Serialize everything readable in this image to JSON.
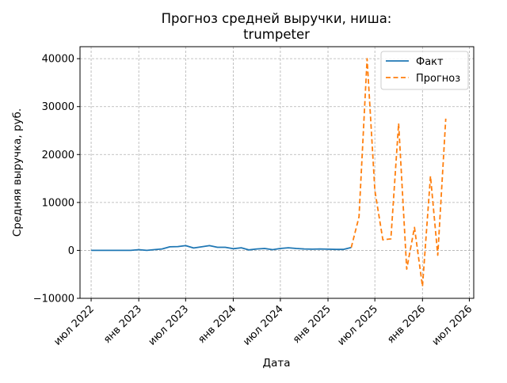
{
  "chart_data": {
    "type": "line",
    "title_lines": [
      "Прогноз средней выручки, ниша:",
      "trumpeter"
    ],
    "xlabel": "Дата",
    "ylabel": "Средняя выручка, руб.",
    "x_ticks": [
      {
        "date": "2022-07-01",
        "label": "июл 2022"
      },
      {
        "date": "2023-01-01",
        "label": "янв 2023"
      },
      {
        "date": "2023-07-01",
        "label": "июл 2023"
      },
      {
        "date": "2024-01-01",
        "label": "янв 2024"
      },
      {
        "date": "2024-07-01",
        "label": "июл 2024"
      },
      {
        "date": "2025-01-01",
        "label": "янв 2025"
      },
      {
        "date": "2025-07-01",
        "label": "июл 2025"
      },
      {
        "date": "2026-01-01",
        "label": "янв 2026"
      },
      {
        "date": "2026-07-01",
        "label": "июл 2026"
      }
    ],
    "y_ticks": [
      {
        "value": -10000,
        "label": "−10000"
      },
      {
        "value": 0,
        "label": "0"
      },
      {
        "value": 10000,
        "label": "10000"
      },
      {
        "value": 20000,
        "label": "20000"
      },
      {
        "value": 30000,
        "label": "30000"
      },
      {
        "value": 40000,
        "label": "40000"
      }
    ],
    "xlim": [
      "2022-05-19",
      "2026-07-18"
    ],
    "ylim": [
      -10000,
      42500
    ],
    "grid": true,
    "grid_style": "dashed",
    "legend_position": "top-right",
    "series": [
      {
        "name": "Факт",
        "color": "#1f77b4",
        "style": "solid",
        "points": [
          {
            "x": "2022-07-01",
            "y": 0
          },
          {
            "x": "2022-08-01",
            "y": 0
          },
          {
            "x": "2022-09-01",
            "y": 0
          },
          {
            "x": "2022-10-01",
            "y": 0
          },
          {
            "x": "2022-11-01",
            "y": 0
          },
          {
            "x": "2022-12-01",
            "y": 0
          },
          {
            "x": "2023-01-01",
            "y": 150
          },
          {
            "x": "2023-02-01",
            "y": 0
          },
          {
            "x": "2023-03-01",
            "y": 150
          },
          {
            "x": "2023-04-01",
            "y": 300
          },
          {
            "x": "2023-05-01",
            "y": 750
          },
          {
            "x": "2023-06-01",
            "y": 800
          },
          {
            "x": "2023-07-01",
            "y": 1000
          },
          {
            "x": "2023-08-01",
            "y": 500
          },
          {
            "x": "2023-09-01",
            "y": 750
          },
          {
            "x": "2023-10-01",
            "y": 1000
          },
          {
            "x": "2023-11-01",
            "y": 650
          },
          {
            "x": "2023-12-01",
            "y": 650
          },
          {
            "x": "2024-01-01",
            "y": 350
          },
          {
            "x": "2024-02-01",
            "y": 550
          },
          {
            "x": "2024-03-01",
            "y": 100
          },
          {
            "x": "2024-04-01",
            "y": 300
          },
          {
            "x": "2024-05-01",
            "y": 400
          },
          {
            "x": "2024-06-01",
            "y": 150
          },
          {
            "x": "2024-07-01",
            "y": 400
          },
          {
            "x": "2024-08-01",
            "y": 550
          },
          {
            "x": "2024-09-01",
            "y": 400
          },
          {
            "x": "2024-10-01",
            "y": 300
          },
          {
            "x": "2024-11-01",
            "y": 250
          },
          {
            "x": "2024-12-01",
            "y": 300
          },
          {
            "x": "2025-01-01",
            "y": 250
          },
          {
            "x": "2025-02-01",
            "y": 200
          },
          {
            "x": "2025-03-01",
            "y": 200
          },
          {
            "x": "2025-04-01",
            "y": 600
          }
        ]
      },
      {
        "name": "Прогноз",
        "color": "#ff7f0e",
        "style": "dashed",
        "points": [
          {
            "x": "2025-04-01",
            "y": 600
          },
          {
            "x": "2025-05-01",
            "y": 7000
          },
          {
            "x": "2025-06-01",
            "y": 40000
          },
          {
            "x": "2025-07-01",
            "y": 12500
          },
          {
            "x": "2025-08-01",
            "y": 2200
          },
          {
            "x": "2025-09-01",
            "y": 2400
          },
          {
            "x": "2025-10-01",
            "y": 26500
          },
          {
            "x": "2025-11-01",
            "y": -3900
          },
          {
            "x": "2025-12-01",
            "y": 4800
          },
          {
            "x": "2026-01-01",
            "y": -7500
          },
          {
            "x": "2026-02-01",
            "y": 15500
          },
          {
            "x": "2026-03-01",
            "y": -1000
          },
          {
            "x": "2026-04-01",
            "y": 27500
          }
        ]
      }
    ]
  }
}
